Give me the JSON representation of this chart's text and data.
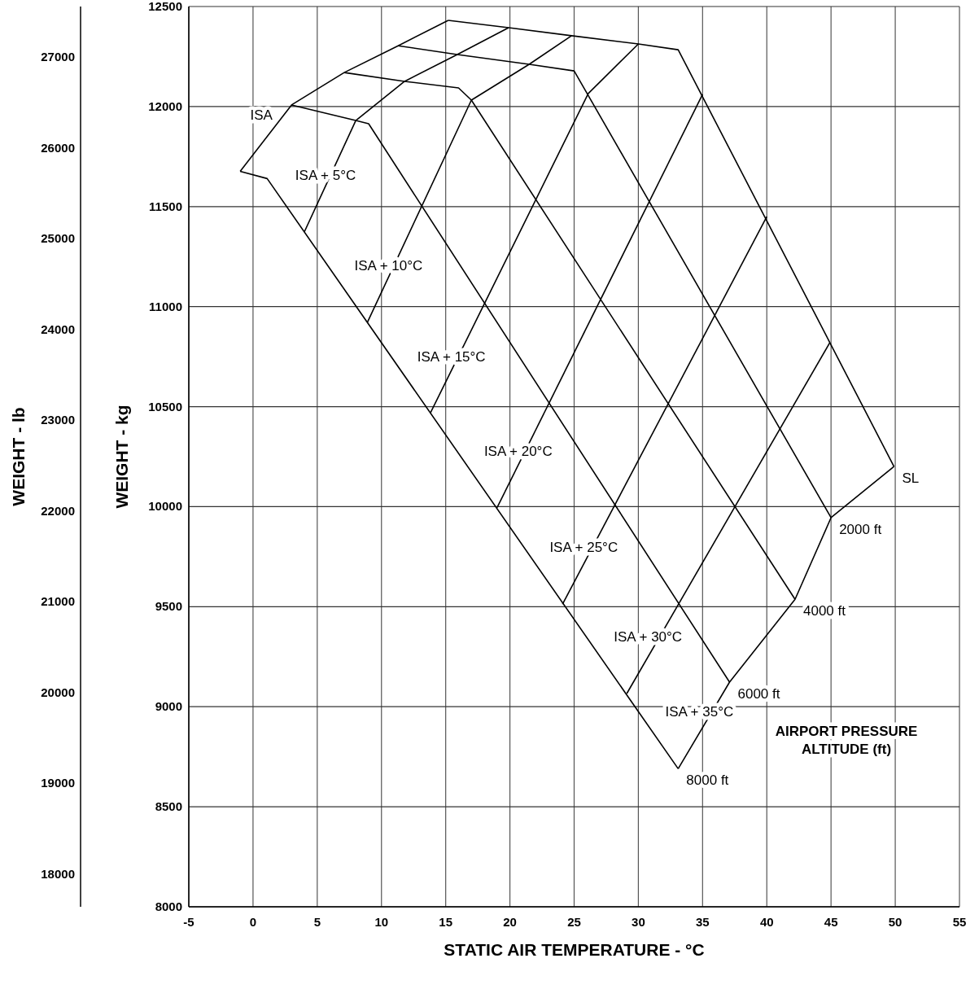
{
  "chart_data": {
    "type": "line",
    "xlabel": "STATIC AIR TEMPERATURE - °C",
    "ylabel": "WEIGHT - kg",
    "y2label": "WEIGHT - lb",
    "xlim": [
      -5,
      55
    ],
    "xticks": [
      -5,
      0,
      5,
      10,
      15,
      20,
      25,
      30,
      35,
      40,
      45,
      50,
      55
    ],
    "ylim": [
      8000,
      12500
    ],
    "yticks": [
      8000,
      8500,
      9000,
      9500,
      10000,
      10500,
      11000,
      11500,
      12000,
      12500
    ],
    "y2lim": [
      17637,
      27558
    ],
    "y2ticks": [
      18000,
      19000,
      20000,
      21000,
      22000,
      23000,
      24000,
      25000,
      26000,
      27000
    ],
    "grid": true,
    "marker": "none",
    "line_style": "solid",
    "annotations": [
      "AIRPORT PRESSURE ALTITUDE (ft)"
    ],
    "series": [
      {
        "name": "ISA",
        "color": "#000000",
        "x": [
          -1,
          3,
          7.1,
          11.3,
          15.2
        ],
        "values": [
          11676,
          12008,
          12170,
          12304,
          12431
        ]
      },
      {
        "name": "ISA + 5°C",
        "color": "#000000",
        "x": [
          4,
          8,
          11.8,
          15.9,
          19.9
        ],
        "values": [
          11374,
          11930,
          12126,
          12260,
          12394
        ]
      },
      {
        "name": "ISA + 10°C",
        "color": "#000000",
        "x": [
          8.9,
          17,
          21.5,
          24.8
        ],
        "values": [
          10921,
          12032,
          12211,
          12354
        ]
      },
      {
        "name": "ISA + 15°C",
        "color": "#000000",
        "x": [
          13.8,
          26.1,
          30
        ],
        "values": [
          10467,
          12065,
          12313
        ]
      },
      {
        "name": "ISA + 20°C",
        "color": "#000000",
        "x": [
          19,
          35
        ],
        "values": [
          9995,
          12061
        ]
      },
      {
        "name": "ISA + 25°C",
        "color": "#000000",
        "x": [
          24.1,
          40
        ],
        "values": [
          9513,
          11450
        ]
      },
      {
        "name": "ISA + 30°C",
        "color": "#000000",
        "x": [
          29.1,
          44.9
        ],
        "values": [
          9066,
          10819
        ]
      },
      {
        "name": "ISA + 35°C",
        "color": "#000000",
        "x": [
          33.1,
          37.1,
          42.2,
          45,
          49.9
        ],
        "values": [
          8690,
          9123,
          9537,
          9945,
          10201
        ]
      },
      {
        "name": "SL",
        "color": "#000000",
        "x": [
          15.2,
          19.9,
          24.8,
          30,
          33.1,
          49.9
        ],
        "values": [
          12431,
          12394,
          12354,
          12313,
          12284,
          10201
        ]
      },
      {
        "name": "2000  ft",
        "color": "#000000",
        "x": [
          11.3,
          15.9,
          21.5,
          25,
          45
        ],
        "values": [
          12304,
          12260,
          12211,
          12178,
          9945
        ]
      },
      {
        "name": "4000  ft",
        "color": "#000000",
        "x": [
          7.1,
          11.8,
          16,
          17,
          42.2
        ],
        "values": [
          12170,
          12126,
          12093,
          12032,
          9537
        ]
      },
      {
        "name": "6000  ft",
        "color": "#000000",
        "x": [
          3,
          8,
          9,
          37.1
        ],
        "values": [
          12008,
          11930,
          11914,
          9123
        ]
      },
      {
        "name": "8000  ft",
        "color": "#000000",
        "x": [
          -1,
          1.1,
          33.1
        ],
        "values": [
          11676,
          11640,
          8690
        ]
      }
    ]
  }
}
